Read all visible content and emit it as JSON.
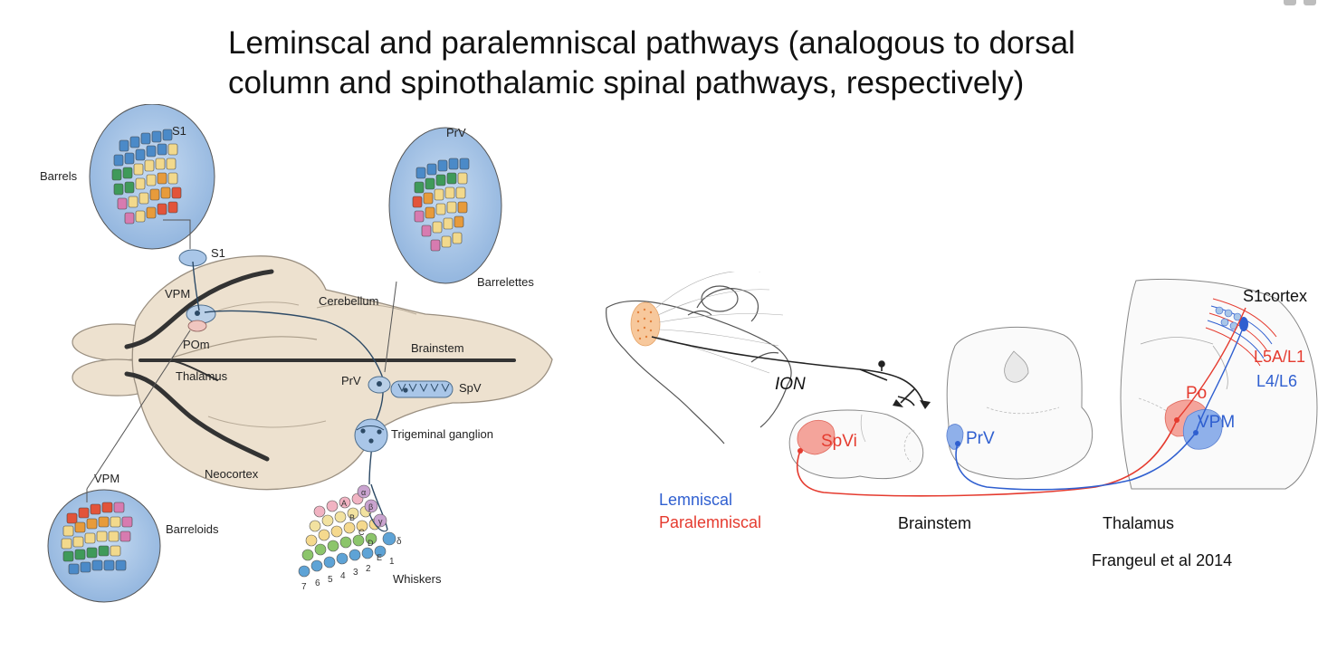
{
  "slide": {
    "title_line1": "Leminscal and paralemniscal pathways (analogous to dorsal",
    "title_line2": "column and spinothalamic spinal pathways, respectively)"
  },
  "left_diagram": {
    "labels": {
      "s1_top": "S1",
      "barrels": "Barrels",
      "s1": "S1",
      "vpm": "VPM",
      "pom": "POm",
      "thalamus": "Thalamus",
      "cerebellum": "Cerebellum",
      "brainstem": "Brainstem",
      "prv_top": "PrV",
      "barrelettes": "Barrelettes",
      "prv": "PrV",
      "spv": "SpV",
      "trigeminal_ganglion": "Trigeminal ganglion",
      "neocortex": "Neocortex",
      "vpm_bottom": "VPM",
      "barreloids": "Barreloids",
      "whiskers": "Whiskers"
    },
    "whisker_rows": [
      "A",
      "B",
      "C",
      "D",
      "E"
    ],
    "whisker_arcs": [
      "α",
      "β",
      "γ",
      "δ"
    ],
    "whisker_columns": [
      "7",
      "6",
      "5",
      "4",
      "3",
      "2",
      "1"
    ]
  },
  "right_diagram": {
    "labels": {
      "s1cortex": "S1cortex",
      "l5a_l1": "L5A/L1",
      "l4_l6": "L4/L6",
      "po": "Po",
      "vpm": "VPM",
      "ion": "ION",
      "spvi": "SpVi",
      "prv": "PrV",
      "brainstem": "Brainstem",
      "thalamus": "Thalamus"
    },
    "legend": {
      "lemniscal": "Lemniscal",
      "paralemniscal": "Paralemniscal"
    },
    "citation": "Frangeul et al 2014"
  },
  "colors": {
    "lemniscal": "#2f5fd0",
    "paralemniscal": "#e53b2f",
    "inset_fill": "#a9c6e8",
    "pathway_line": "#2d4a66",
    "brain_fill": "#ede1cf",
    "tract_dark": "#333333"
  }
}
